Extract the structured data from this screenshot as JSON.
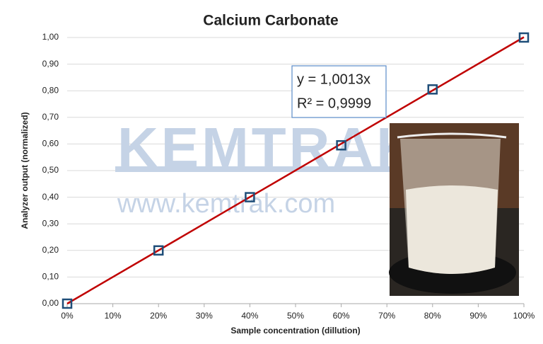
{
  "chart_data": {
    "type": "scatter",
    "title": "Calcium Carbonate",
    "x_label": "Sample concentration (dillution)",
    "y_label": "Analyzer output (normalized)",
    "series": [
      {
        "name": "Calcium Carbonate",
        "color": "#1f4e79",
        "x": [
          0,
          0.2,
          0.4,
          0.6,
          0.8,
          1.0
        ],
        "values": [
          0,
          0.2,
          0.4,
          0.595,
          0.805,
          1.0
        ]
      }
    ],
    "trendline": {
      "color": "#c00000",
      "slope": 1.0013,
      "equation": "y = 1,0013x",
      "r2_label": "R² = 0,9999"
    },
    "watermark": [
      "KEMTRAK",
      "www.kemtrak.com"
    ],
    "xlim": [
      0,
      1
    ],
    "ylim": [
      0,
      1
    ],
    "grid": true,
    "xticks": [
      {
        "value": 0,
        "label": "0%"
      },
      {
        "value": 0.1,
        "label": "10%"
      },
      {
        "value": 0.2,
        "label": "20%"
      },
      {
        "value": 0.3,
        "label": "30%"
      },
      {
        "value": 0.4,
        "label": "40%"
      },
      {
        "value": 0.5,
        "label": "50%"
      },
      {
        "value": 0.6,
        "label": "60%"
      },
      {
        "value": 0.7,
        "label": "70%"
      },
      {
        "value": 0.8,
        "label": "80%"
      },
      {
        "value": 0.9,
        "label": "90%"
      },
      {
        "value": 1.0,
        "label": "100%"
      }
    ],
    "yticks": [
      {
        "value": 0,
        "label": "0,00"
      },
      {
        "value": 0.1,
        "label": "0,10"
      },
      {
        "value": 0.2,
        "label": "0,20"
      },
      {
        "value": 0.3,
        "label": "0,30"
      },
      {
        "value": 0.4,
        "label": "0,40"
      },
      {
        "value": 0.5,
        "label": "0,50"
      },
      {
        "value": 0.6,
        "label": "0,60"
      },
      {
        "value": 0.7,
        "label": "0,70"
      },
      {
        "value": 0.8,
        "label": "0,80"
      },
      {
        "value": 0.9,
        "label": "0,90"
      },
      {
        "value": 1.0,
        "label": "1,00"
      }
    ]
  }
}
